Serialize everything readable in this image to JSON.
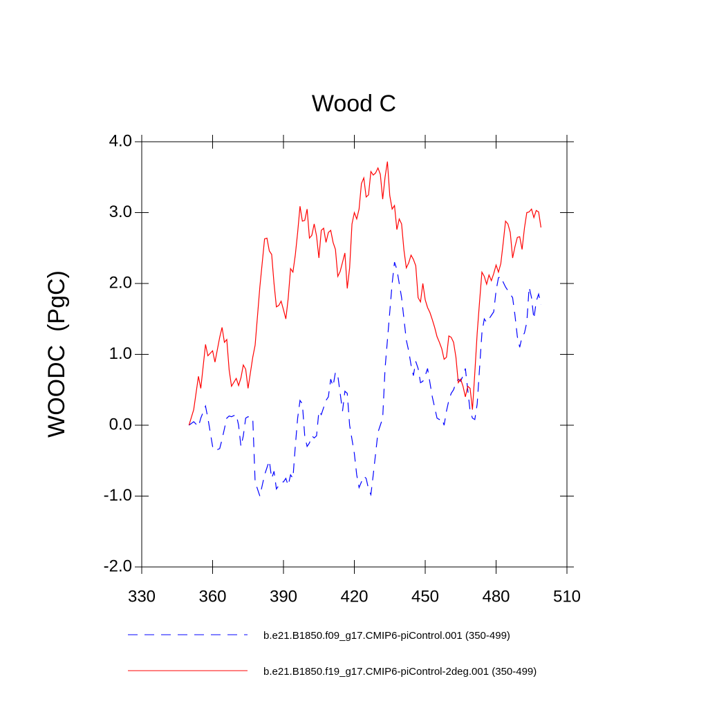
{
  "chart_data": {
    "type": "line",
    "title": "Wood C",
    "ylabel": "WOODC  (PgC)",
    "x": [
      350,
      352,
      354,
      355,
      357,
      358,
      360,
      361,
      363,
      364,
      365,
      366,
      367,
      368,
      370,
      371,
      372,
      373,
      374,
      375,
      377,
      378,
      380,
      382,
      383,
      384,
      385,
      386,
      387,
      388,
      389,
      390,
      391,
      392,
      393,
      394,
      395,
      396,
      397,
      398,
      399,
      400,
      401,
      402,
      403,
      404,
      405,
      406,
      407,
      408,
      409,
      410,
      411,
      412,
      413,
      414,
      415,
      416,
      417,
      418,
      419,
      420,
      421,
      422,
      423,
      424,
      425,
      426,
      427,
      428,
      429,
      430,
      431,
      432,
      433,
      434,
      435,
      436,
      437,
      438,
      439,
      440,
      441,
      442,
      443,
      444,
      445,
      446,
      447,
      448,
      449,
      450,
      451,
      452,
      453,
      454,
      455,
      456,
      457,
      458,
      459,
      460,
      461,
      462,
      463,
      464,
      465,
      466,
      467,
      468,
      469,
      470,
      471,
      472,
      473,
      474,
      475,
      476,
      477,
      478,
      479,
      480,
      481,
      482,
      483,
      484,
      485,
      486,
      487,
      488,
      489,
      490,
      491,
      492,
      493,
      494,
      495,
      496,
      497,
      498,
      499
    ],
    "series": [
      {
        "name": "b.e21.B1850.f09_g17.CMIP6-piControl.001 (350-499)",
        "color": "#0000ff",
        "dash": true,
        "values": [
          0.0,
          0.05,
          -0.02,
          0.1,
          0.27,
          0.1,
          -0.3,
          -0.36,
          -0.33,
          -0.2,
          -0.05,
          0.1,
          0.13,
          0.12,
          0.15,
          0.0,
          -0.3,
          -0.15,
          0.1,
          0.12,
          0.1,
          -0.8,
          -1.0,
          -0.7,
          -0.6,
          -0.5,
          -0.75,
          -0.65,
          -0.9,
          -0.85,
          -0.8,
          -0.8,
          -0.75,
          -0.85,
          -0.7,
          -0.75,
          -0.3,
          0.1,
          0.35,
          0.3,
          -0.15,
          -0.3,
          -0.25,
          -0.15,
          -0.18,
          -0.15,
          0.2,
          0.15,
          0.25,
          0.35,
          0.4,
          0.65,
          0.55,
          0.75,
          0.7,
          0.45,
          0.2,
          0.48,
          0.45,
          0.0,
          -0.2,
          -0.4,
          -0.7,
          -0.88,
          -0.8,
          -0.72,
          -0.75,
          -0.9,
          -0.98,
          -0.7,
          -0.4,
          -0.1,
          0.0,
          0.1,
          0.8,
          1.2,
          1.6,
          2.0,
          2.3,
          2.2,
          2.0,
          1.8,
          1.5,
          1.2,
          1.05,
          0.85,
          0.7,
          0.9,
          0.8,
          0.6,
          0.62,
          0.7,
          0.8,
          0.6,
          0.4,
          0.25,
          0.1,
          0.08,
          0.1,
          0.0,
          0.2,
          0.35,
          0.45,
          0.5,
          0.6,
          0.65,
          0.62,
          0.7,
          0.8,
          0.5,
          0.2,
          0.1,
          0.08,
          0.3,
          0.8,
          1.3,
          1.5,
          1.45,
          1.5,
          1.55,
          1.6,
          1.9,
          2.08,
          2.1,
          2.02,
          1.95,
          1.9,
          1.85,
          1.8,
          1.55,
          1.25,
          1.1,
          1.25,
          1.3,
          1.45,
          1.95,
          1.8,
          1.5,
          1.75,
          1.85,
          1.7
        ]
      },
      {
        "name": "b.e21.B1850.f19_g17.CMIP6-piControl-2deg.001 (350-499)",
        "color": "#ff0000",
        "dash": false,
        "values": [
          0.0,
          0.22,
          0.69,
          0.52,
          1.14,
          0.98,
          1.05,
          0.89,
          1.24,
          1.38,
          1.17,
          1.21,
          0.78,
          0.55,
          0.66,
          0.56,
          0.67,
          0.85,
          0.79,
          0.52,
          0.96,
          1.13,
          1.95,
          2.63,
          2.64,
          2.46,
          2.41,
          2.0,
          1.67,
          1.69,
          1.75,
          1.63,
          1.5,
          1.79,
          2.21,
          2.16,
          2.4,
          2.72,
          3.09,
          2.88,
          2.89,
          3.05,
          2.64,
          2.68,
          2.84,
          2.67,
          2.36,
          2.75,
          2.78,
          2.58,
          2.72,
          2.75,
          2.58,
          2.48,
          2.1,
          2.17,
          2.3,
          2.43,
          1.93,
          2.22,
          2.84,
          3.0,
          2.91,
          3.05,
          3.41,
          3.49,
          3.22,
          3.25,
          3.58,
          3.53,
          3.56,
          3.63,
          3.54,
          3.19,
          3.5,
          3.72,
          3.24,
          3.05,
          3.1,
          2.76,
          2.91,
          2.84,
          2.47,
          2.22,
          2.29,
          2.4,
          2.34,
          2.25,
          1.8,
          1.74,
          2.0,
          1.77,
          1.66,
          1.59,
          1.49,
          1.38,
          1.25,
          1.17,
          1.08,
          0.93,
          0.96,
          1.26,
          1.24,
          1.17,
          0.96,
          0.6,
          0.65,
          0.55,
          0.4,
          0.55,
          0.52,
          0.22,
          0.74,
          1.3,
          1.74,
          2.16,
          2.1,
          1.99,
          2.12,
          2.04,
          2.14,
          2.26,
          2.16,
          2.28,
          2.57,
          2.88,
          2.84,
          2.72,
          2.36,
          2.52,
          2.65,
          2.66,
          2.48,
          2.78,
          3.0,
          3.01,
          3.05,
          2.93,
          3.03,
          3.01,
          2.79
        ]
      }
    ],
    "xlim": [
      330,
      510
    ],
    "xticks": [
      330,
      360,
      390,
      420,
      450,
      480,
      510
    ],
    "ylim": [
      -2,
      4
    ],
    "yticks": [
      {
        "value": -2,
        "label": "-2.0"
      },
      {
        "value": -1,
        "label": "-1.0"
      },
      {
        "value": 0,
        "label": "0.0"
      },
      {
        "value": 1,
        "label": "1.0"
      },
      {
        "value": 2,
        "label": "2.0"
      },
      {
        "value": 3,
        "label": "3.0"
      },
      {
        "value": 4,
        "label": "4.0"
      }
    ],
    "grid": false,
    "legend": "bottom"
  }
}
